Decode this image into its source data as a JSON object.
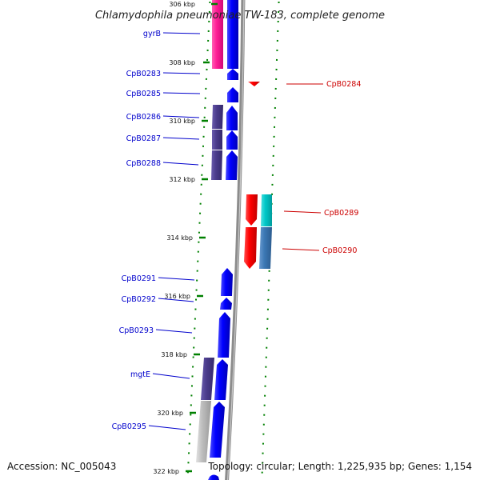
{
  "title": "Chlamydophila pneumoniae TW-183, complete genome",
  "footer": {
    "accession": "Accession: NC_005043",
    "summary": "Topology: circular; Length: 1,225,935 bp; Genes: 1,154"
  },
  "ticks": [
    "306 kbp",
    "308 kbp",
    "310 kbp",
    "312 kbp",
    "314 kbp",
    "316 kbp",
    "318 kbp",
    "320 kbp",
    "322 kbp"
  ],
  "left_genes": [
    "gyrB",
    "CpB0283",
    "CpB0285",
    "CpB0286",
    "CpB0287",
    "CpB0288",
    "CpB0291",
    "CpB0292",
    "CpB0293",
    "mgtE",
    "CpB0295"
  ],
  "right_genes": [
    "CpB0284",
    "CpB0289",
    "CpB0290"
  ],
  "colors": {
    "forward_cds": "#0000ff",
    "reverse_cds": "#ff0000",
    "cog_magenta": "#ff1e96",
    "cog_purple": "#4b3c8c",
    "cog_cyan": "#00c8c8",
    "cog_steel": "#3c78b4",
    "cog_grey": "#bebebe",
    "backbone": "#8c8c8c",
    "ticks": "#008000",
    "left_label": "#0000cc",
    "right_label": "#cc0000"
  }
}
